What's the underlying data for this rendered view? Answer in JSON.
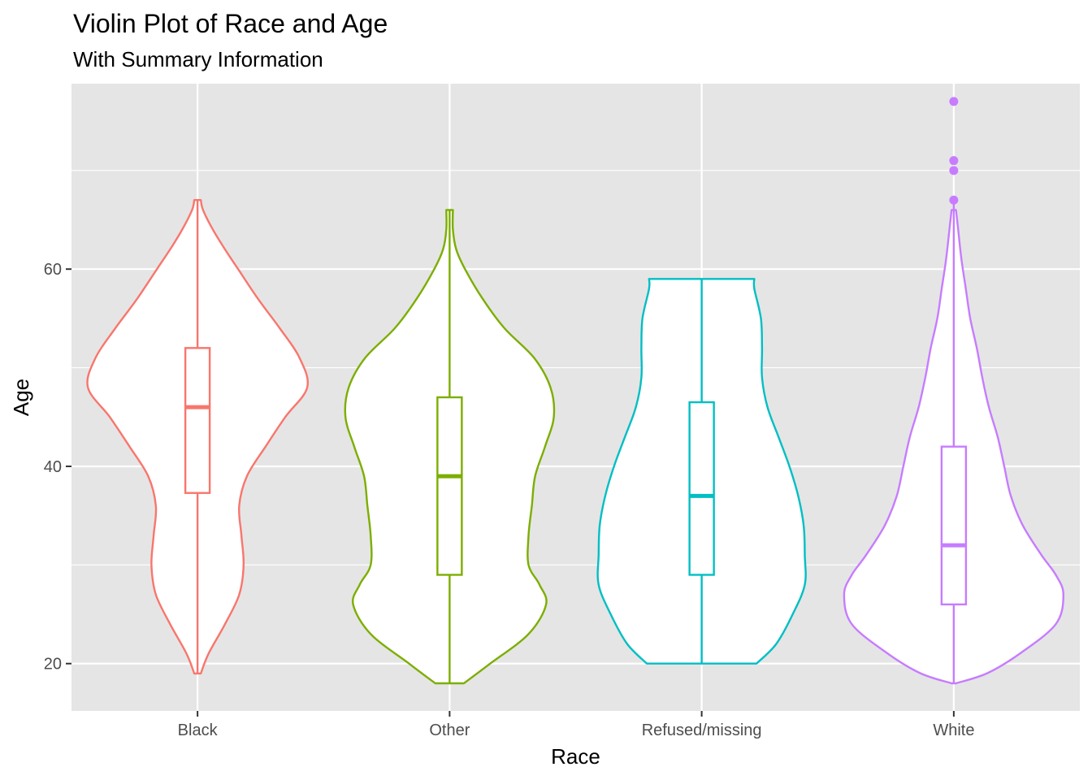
{
  "chart_data": {
    "type": "violin",
    "title": "Violin Plot of Race and Age",
    "subtitle": "With Summary Information",
    "xlabel": "Race",
    "ylabel": "Age",
    "ylim": [
      15.2,
      78.8
    ],
    "yticks": [
      20,
      40,
      60
    ],
    "grid": true,
    "legend": "none",
    "categories": [
      "Black",
      "Other",
      "Refused/missing",
      "White"
    ],
    "series": [
      {
        "category": "Black",
        "color": "#F8766D",
        "min": 19,
        "q1": 37.3,
        "median": 46,
        "q3": 52,
        "max": 67,
        "outliers": [],
        "density": [
          [
            19,
            0.03
          ],
          [
            21,
            0.1
          ],
          [
            24,
            0.25
          ],
          [
            27,
            0.38
          ],
          [
            30,
            0.42
          ],
          [
            33,
            0.4
          ],
          [
            36,
            0.38
          ],
          [
            39,
            0.45
          ],
          [
            42,
            0.62
          ],
          [
            45,
            0.8
          ],
          [
            48,
            1.0
          ],
          [
            51,
            0.93
          ],
          [
            54,
            0.75
          ],
          [
            57,
            0.55
          ],
          [
            60,
            0.37
          ],
          [
            62,
            0.25
          ],
          [
            64,
            0.14
          ],
          [
            66,
            0.05
          ],
          [
            67,
            0.03
          ]
        ]
      },
      {
        "category": "Other",
        "color": "#7CAE00",
        "min": 18,
        "q1": 29,
        "median": 39,
        "q3": 47,
        "max": 66,
        "outliers": [],
        "density": [
          [
            18,
            0.13
          ],
          [
            20,
            0.37
          ],
          [
            23,
            0.72
          ],
          [
            26,
            0.88
          ],
          [
            28,
            0.82
          ],
          [
            30,
            0.72
          ],
          [
            33,
            0.72
          ],
          [
            36,
            0.75
          ],
          [
            39,
            0.78
          ],
          [
            42,
            0.87
          ],
          [
            45,
            0.95
          ],
          [
            48,
            0.92
          ],
          [
            51,
            0.77
          ],
          [
            54,
            0.5
          ],
          [
            57,
            0.3
          ],
          [
            60,
            0.14
          ],
          [
            62,
            0.06
          ],
          [
            64,
            0.03
          ],
          [
            66,
            0.03
          ]
        ]
      },
      {
        "category": "Refused/missing",
        "color": "#00BFC4",
        "min": 20,
        "q1": 29,
        "median": 37,
        "q3": 46.5,
        "max": 59,
        "outliers": [],
        "density": [
          [
            20,
            0.5
          ],
          [
            22,
            0.68
          ],
          [
            25,
            0.83
          ],
          [
            28,
            0.94
          ],
          [
            31,
            0.94
          ],
          [
            34,
            0.93
          ],
          [
            37,
            0.88
          ],
          [
            40,
            0.8
          ],
          [
            43,
            0.7
          ],
          [
            46,
            0.6
          ],
          [
            49,
            0.55
          ],
          [
            52,
            0.55
          ],
          [
            55,
            0.54
          ],
          [
            58,
            0.48
          ],
          [
            59,
            0.48
          ]
        ]
      },
      {
        "category": "White",
        "color": "#C77CFF",
        "min": 18,
        "q1": 26,
        "median": 32,
        "q3": 42,
        "max": 67,
        "outliers": [
          67,
          70,
          71,
          77
        ],
        "density": [
          [
            18,
            0.02
          ],
          [
            19,
            0.3
          ],
          [
            21,
            0.6
          ],
          [
            24,
            0.93
          ],
          [
            27,
            1.0
          ],
          [
            29,
            0.93
          ],
          [
            31,
            0.8
          ],
          [
            34,
            0.63
          ],
          [
            37,
            0.52
          ],
          [
            40,
            0.46
          ],
          [
            43,
            0.4
          ],
          [
            46,
            0.32
          ],
          [
            49,
            0.26
          ],
          [
            52,
            0.21
          ],
          [
            55,
            0.15
          ],
          [
            58,
            0.11
          ],
          [
            61,
            0.07
          ],
          [
            64,
            0.04
          ],
          [
            66,
            0.02
          ]
        ]
      }
    ]
  }
}
